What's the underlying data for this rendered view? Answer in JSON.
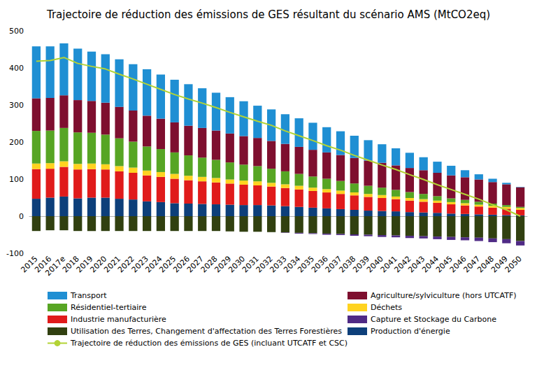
{
  "chart_data": {
    "type": "bar",
    "title": "Trajectoire de réduction des émissions de GES résultant du scénario AMS (MtCO2eq)",
    "categories": [
      "2015",
      "2016",
      "2017e",
      "2018",
      "2019",
      "2020",
      "2021",
      "2022",
      "2023",
      "2024",
      "2025",
      "2026",
      "2027",
      "2028",
      "2029",
      "2030",
      "2031",
      "2032",
      "2033",
      "2034",
      "2035",
      "2036",
      "2037",
      "2038",
      "2039",
      "2040",
      "2041",
      "2042",
      "2043",
      "2044",
      "2045",
      "2046",
      "2047",
      "2048",
      "2049",
      "2050"
    ],
    "stacked": true,
    "grid": false,
    "legend": "bottom",
    "ylim": [
      -100,
      500
    ],
    "yticks": [
      -100,
      0,
      100,
      200,
      300,
      400,
      500
    ],
    "series": [
      {
        "name": "Production d'énergie",
        "type": "bar",
        "color": "#0d3f7a",
        "values": [
          47,
          50,
          53,
          48,
          50,
          50,
          47,
          45,
          40,
          38,
          35,
          34,
          33,
          32,
          31,
          30,
          30,
          29,
          27,
          25,
          23,
          21,
          19,
          17,
          15,
          14,
          13,
          11,
          10,
          9,
          7,
          6,
          5,
          4,
          3,
          2
        ]
      },
      {
        "name": "Industrie manufacturière",
        "type": "bar",
        "color": "#e01b1b",
        "values": [
          80,
          78,
          80,
          78,
          77,
          76,
          74,
          72,
          70,
          68,
          66,
          63,
          61,
          59,
          57,
          55,
          53,
          51,
          49,
          47,
          45,
          43,
          41,
          39,
          37,
          35,
          33,
          31,
          29,
          27,
          25,
          23,
          21,
          19,
          17,
          15
        ]
      },
      {
        "name": "Déchets",
        "type": "bar",
        "color": "#ffd320",
        "values": [
          15,
          15,
          15,
          15,
          15,
          14,
          14,
          14,
          13,
          13,
          13,
          12,
          12,
          12,
          11,
          11,
          11,
          10,
          10,
          10,
          9,
          9,
          9,
          8,
          8,
          8,
          7,
          7,
          7,
          6,
          6,
          6,
          5,
          5,
          5,
          5
        ]
      },
      {
        "name": "Résidentiel-tertiaire",
        "type": "bar",
        "color": "#57a524",
        "values": [
          88,
          88,
          90,
          85,
          83,
          80,
          75,
          70,
          65,
          62,
          58,
          55,
          52,
          49,
          46,
          43,
          41,
          38,
          35,
          32,
          30,
          28,
          26,
          24,
          22,
          20,
          18,
          16,
          14,
          12,
          10,
          9,
          8,
          6,
          5,
          3
        ]
      },
      {
        "name": "Agriculture/sylviculture (hors UTCATF)",
        "type": "bar",
        "color": "#7e0f2f",
        "values": [
          88,
          88,
          88,
          87,
          86,
          86,
          85,
          84,
          83,
          82,
          81,
          80,
          80,
          79,
          78,
          77,
          76,
          75,
          74,
          73,
          72,
          71,
          70,
          69,
          68,
          67,
          66,
          65,
          64,
          63,
          62,
          61,
          60,
          58,
          56,
          53
        ]
      },
      {
        "name": "Transport",
        "type": "bar",
        "color": "#1f8fd3",
        "values": [
          140,
          139,
          140,
          139,
          133,
          131,
          128,
          125,
          125,
          119,
          115,
          112,
          107,
          102,
          98,
          94,
          87,
          85,
          80,
          77,
          73,
          68,
          64,
          60,
          55,
          50,
          46,
          41,
          35,
          30,
          26,
          19,
          14,
          9,
          4,
          1
        ]
      },
      {
        "name": "Utilisation des Terres, Changement d'affectation des Terres Forestières",
        "type": "bar",
        "color": "#314010",
        "values": [
          -40,
          -38,
          -38,
          -40,
          -40,
          -40,
          -40,
          -40,
          -40,
          -40,
          -40,
          -40,
          -40,
          -40,
          -41,
          -42,
          -42,
          -43,
          -44,
          -45,
          -46,
          -47,
          -48,
          -49,
          -50,
          -51,
          -52,
          -53,
          -54,
          -55,
          -56,
          -57,
          -58,
          -60,
          -62,
          -67
        ]
      },
      {
        "name": "Capture et Stockage du Carbone",
        "type": "bar",
        "color": "#4f2a85",
        "values": [
          0,
          0,
          0,
          0,
          0,
          0,
          0,
          0,
          0,
          0,
          0,
          0,
          0,
          0,
          0,
          0,
          0,
          0,
          -1,
          -2,
          -2,
          -3,
          -3,
          -4,
          -4,
          -5,
          -5,
          -6,
          -6,
          -7,
          -8,
          -8,
          -9,
          -10,
          -11,
          -12
        ]
      },
      {
        "name": "Trajectoire de réduction des émissions de GES (incluant UTCATF et CSC)",
        "type": "line",
        "color": "#b3d335",
        "values": [
          418,
          420,
          428,
          412,
          404,
          397,
          383,
          370,
          356,
          342,
          328,
          316,
          305,
          293,
          280,
          268,
          256,
          245,
          230,
          217,
          204,
          190,
          178,
          164,
          151,
          138,
          126,
          112,
          99,
          85,
          72,
          59,
          46,
          31,
          17,
          0
        ]
      }
    ]
  }
}
